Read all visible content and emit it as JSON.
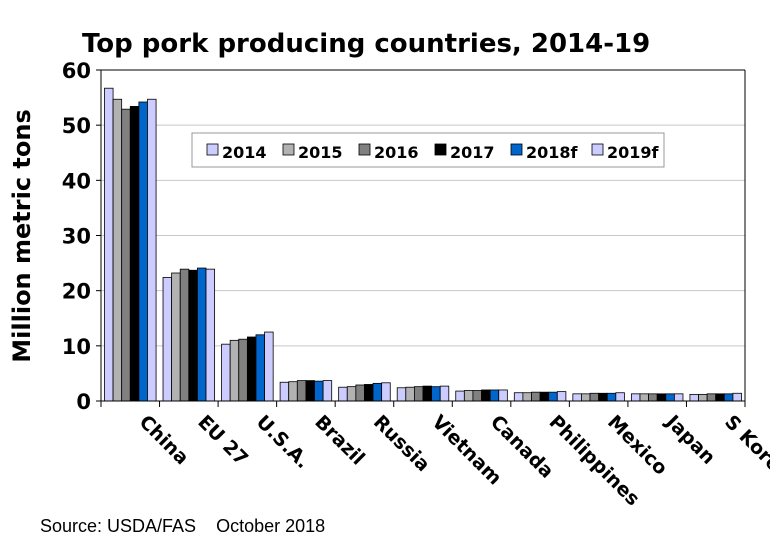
{
  "chart_data": {
    "type": "bar",
    "title": "Top pork producing countries, 2014-19",
    "ylabel": "Million metric tons",
    "xlabel": "",
    "ylim": [
      0,
      60
    ],
    "yticks": [
      0,
      10,
      20,
      30,
      40,
      50,
      60
    ],
    "grid": true,
    "legend_placement": "top-right",
    "categories": [
      "China",
      "EU 27",
      "U.S.A.",
      "Brazil",
      "Russia",
      "Vietnam",
      "Canada",
      "Philippines",
      "Mexico",
      "Japan",
      "S Korea"
    ],
    "series": [
      {
        "name": "2014",
        "color": "#ccccff",
        "values": [
          56.7,
          22.4,
          10.3,
          3.4,
          2.5,
          2.4,
          1.8,
          1.5,
          1.3,
          1.3,
          1.2
        ]
      },
      {
        "name": "2015",
        "color": "#b2b2b2",
        "values": [
          54.7,
          23.2,
          11.0,
          3.5,
          2.6,
          2.5,
          1.9,
          1.5,
          1.3,
          1.3,
          1.2
        ]
      },
      {
        "name": "2016",
        "color": "#808080",
        "values": [
          52.9,
          23.9,
          11.2,
          3.7,
          2.9,
          2.6,
          1.9,
          1.6,
          1.4,
          1.3,
          1.3
        ]
      },
      {
        "name": "2017",
        "color": "#000000",
        "values": [
          53.4,
          23.7,
          11.6,
          3.7,
          3.0,
          2.7,
          2.0,
          1.6,
          1.4,
          1.3,
          1.3
        ]
      },
      {
        "name": "2018f",
        "color": "#0066cc",
        "values": [
          54.2,
          24.1,
          12.0,
          3.6,
          3.2,
          2.6,
          2.0,
          1.6,
          1.4,
          1.3,
          1.3
        ]
      },
      {
        "name": "2019f",
        "color": "#ccccff",
        "values": [
          54.7,
          23.9,
          12.5,
          3.7,
          3.3,
          2.7,
          2.0,
          1.7,
          1.5,
          1.3,
          1.4
        ]
      }
    ]
  },
  "source": "Source: USDA/FAS    October 2018"
}
